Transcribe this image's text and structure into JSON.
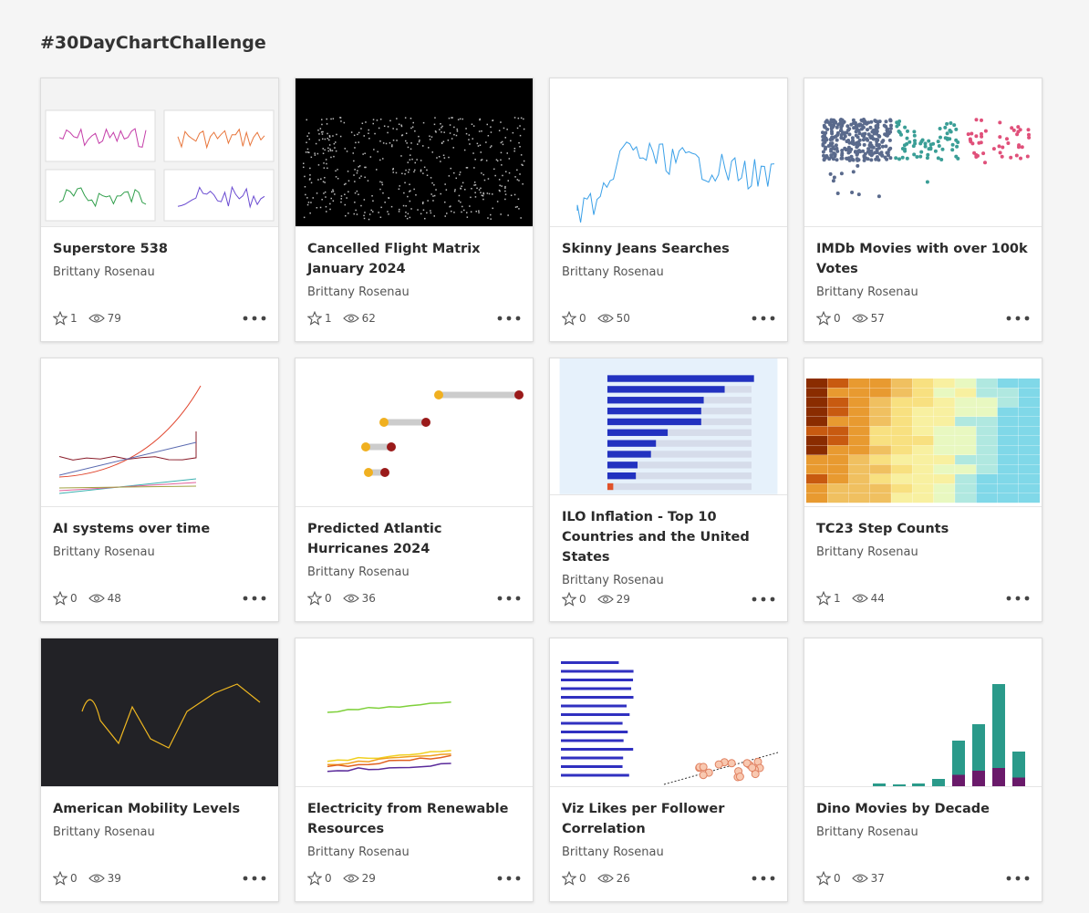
{
  "header": {
    "title": "#30DayChartChallenge"
  },
  "cards": [
    {
      "title": "Superstore 538",
      "author": "Brittany Rosenau",
      "likes": 1,
      "views": 79
    },
    {
      "title": "Cancelled Flight Matrix January 2024",
      "author": "Brittany Rosenau",
      "likes": 1,
      "views": 62
    },
    {
      "title": "Skinny Jeans Searches",
      "author": "Brittany Rosenau",
      "likes": 0,
      "views": 50
    },
    {
      "title": "IMDb Movies with over 100k Votes",
      "author": "Brittany Rosenau",
      "likes": 0,
      "views": 57
    },
    {
      "title": "AI systems over time",
      "author": "Brittany Rosenau",
      "likes": 0,
      "views": 48
    },
    {
      "title": "Predicted Atlantic Hurricanes 2024",
      "author": "Brittany Rosenau",
      "likes": 0,
      "views": 36
    },
    {
      "title": "ILO Inflation - Top 10 Countries and the United States",
      "author": "Brittany Rosenau",
      "likes": 0,
      "views": 29
    },
    {
      "title": "TC23 Step Counts",
      "author": "Brittany Rosenau",
      "likes": 1,
      "views": 44
    },
    {
      "title": "American Mobility Levels",
      "author": "Brittany Rosenau",
      "likes": 0,
      "views": 39
    },
    {
      "title": "Electricity from Renewable Resources",
      "author": "Brittany Rosenau",
      "likes": 0,
      "views": 29
    },
    {
      "title": "Viz Likes per Follower Correlation",
      "author": "Brittany Rosenau",
      "likes": 0,
      "views": 26
    },
    {
      "title": "Dino Movies by Decade",
      "author": "Brittany Rosenau",
      "likes": 0,
      "views": 37
    }
  ]
}
